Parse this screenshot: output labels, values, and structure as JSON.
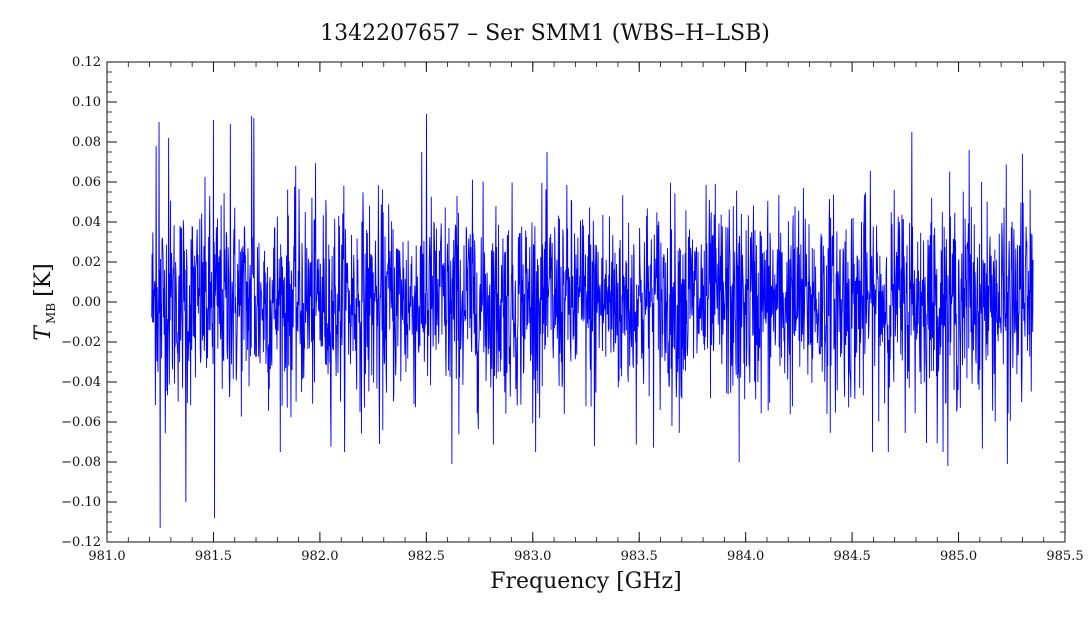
{
  "chart_data": {
    "type": "line",
    "title": "1342207657 – Ser SMM1 (WBS–H–LSB)",
    "xlabel": "Frequency [GHz]",
    "ylabel": {
      "main": "T",
      "subscript": "MB",
      "unit": "[K]"
    },
    "xlim": [
      981.0,
      985.5
    ],
    "ylim": [
      -0.12,
      0.12
    ],
    "x_ticks": [
      981.0,
      981.5,
      982.0,
      982.5,
      983.0,
      983.5,
      984.0,
      984.5,
      985.0,
      985.5
    ],
    "x_tick_labels": [
      "981.0",
      "981.5",
      "982.0",
      "982.5",
      "983.0",
      "983.5",
      "984.0",
      "984.5",
      "985.0",
      "985.5"
    ],
    "y_ticks": [
      -0.12,
      -0.1,
      -0.08,
      -0.06,
      -0.04,
      -0.02,
      0.0,
      0.02,
      0.04,
      0.06,
      0.08,
      0.1,
      0.12
    ],
    "y_tick_labels": [
      "−0.12",
      "−0.10",
      "−0.08",
      "−0.06",
      "−0.04",
      "−0.02",
      "0.00",
      "0.02",
      "0.04",
      "0.06",
      "0.08",
      "0.10",
      "0.12"
    ],
    "grid": false,
    "series": [
      {
        "color": "#0000ff",
        "x_range": [
          981.21,
          985.35
        ],
        "noise_rms": 0.025,
        "peaks": [
          {
            "x": 981.23,
            "y": 0.078
          },
          {
            "x": 981.245,
            "y": 0.09
          },
          {
            "x": 981.25,
            "y": -0.113
          },
          {
            "x": 981.29,
            "y": 0.082
          },
          {
            "x": 981.37,
            "y": -0.1
          },
          {
            "x": 981.5,
            "y": 0.091
          },
          {
            "x": 981.505,
            "y": -0.108
          },
          {
            "x": 981.58,
            "y": 0.089
          },
          {
            "x": 981.68,
            "y": 0.093
          },
          {
            "x": 981.69,
            "y": 0.092
          },
          {
            "x": 982.5,
            "y": 0.094
          },
          {
            "x": 982.62,
            "y": -0.081
          },
          {
            "x": 982.28,
            "y": -0.071
          },
          {
            "x": 983.29,
            "y": -0.072
          },
          {
            "x": 983.97,
            "y": -0.08
          },
          {
            "x": 984.78,
            "y": 0.085
          },
          {
            "x": 984.95,
            "y": -0.082
          },
          {
            "x": 985.05,
            "y": 0.076
          },
          {
            "x": 985.23,
            "y": -0.081
          },
          {
            "x": 985.3,
            "y": 0.074
          }
        ]
      }
    ]
  }
}
